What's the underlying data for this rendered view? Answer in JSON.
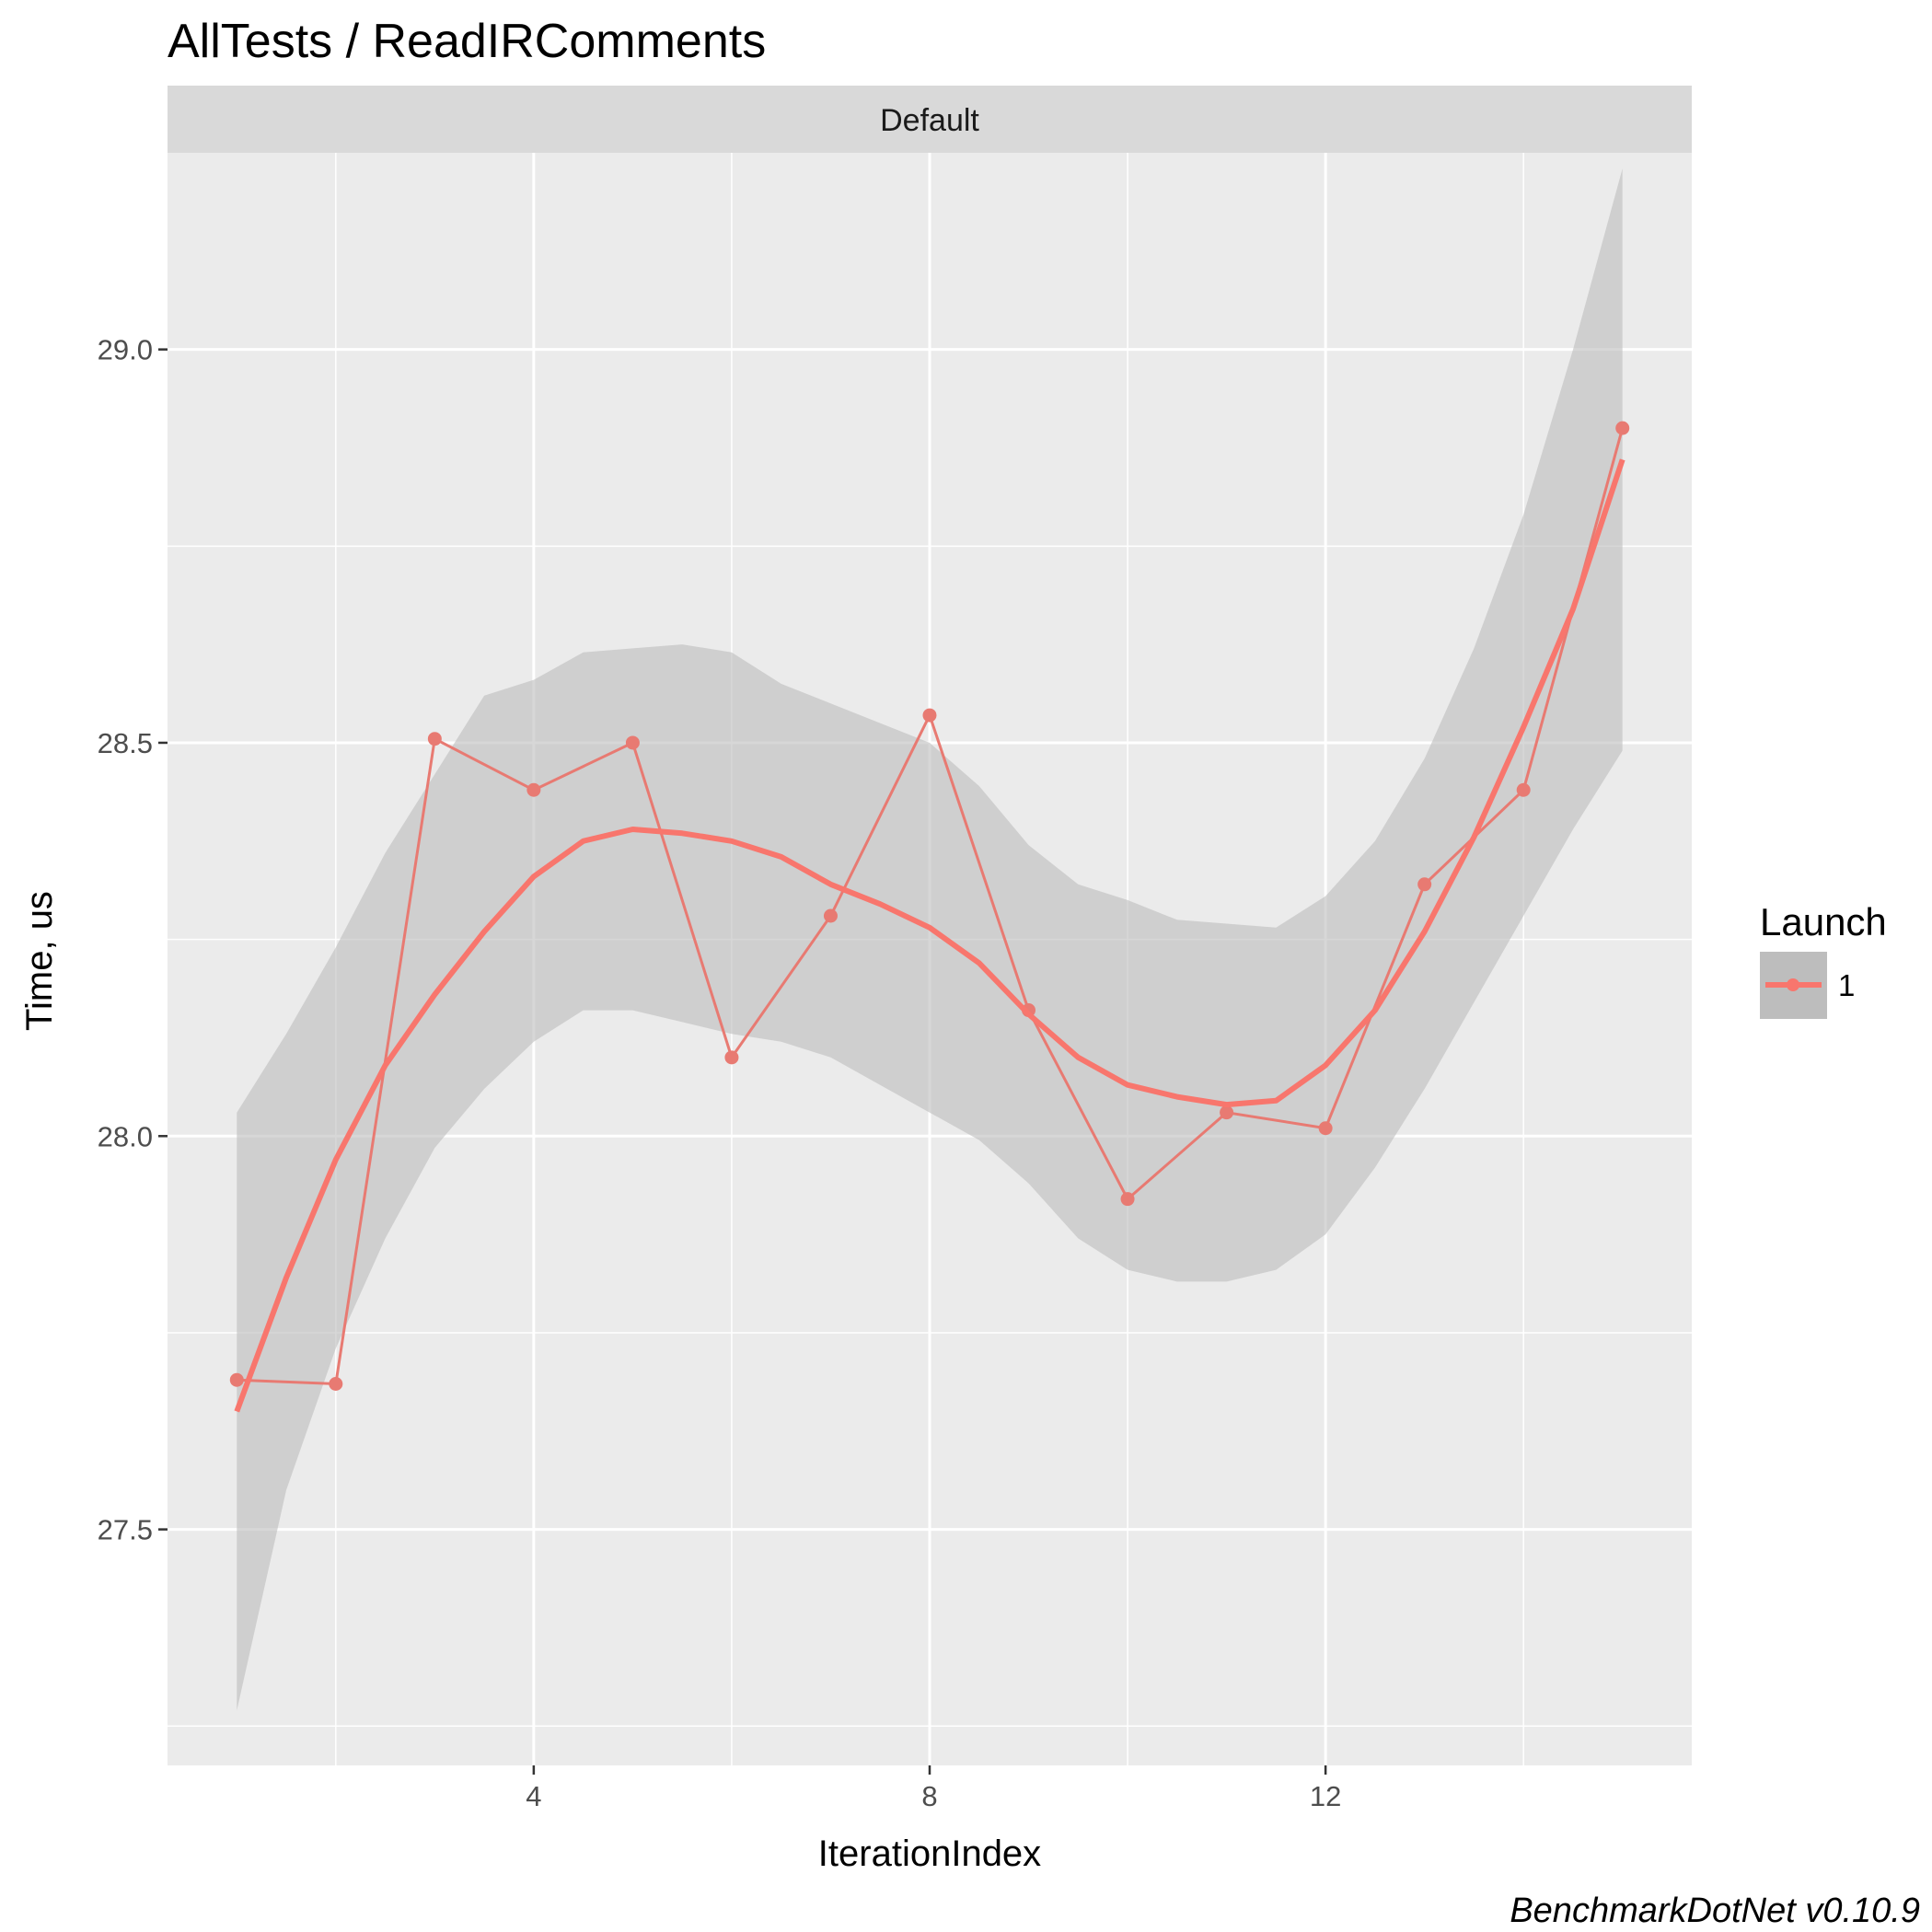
{
  "chart_data": {
    "type": "line",
    "title": "AllTests / ReadIRComments",
    "facet": "Default",
    "xlabel": "IterationIndex",
    "ylabel": "Time, us",
    "xlim": [
      0.3,
      15.7
    ],
    "ylim": [
      27.2,
      29.25
    ],
    "x_ticks": [
      4,
      8,
      12
    ],
    "x_tick_labels": [
      "4",
      "8",
      "12"
    ],
    "y_ticks": [
      27.5,
      28.0,
      28.5,
      29.0
    ],
    "y_tick_labels": [
      "27.5",
      "28.0",
      "28.5",
      "29.0"
    ],
    "grid": true,
    "legend": {
      "title": "Launch",
      "position": "right",
      "entries": [
        "1"
      ]
    },
    "colors": {
      "series": "#F8766D",
      "points": "#E87A72",
      "ribbon": "#BDBDBD",
      "panel": "#EBEBEB",
      "strip": "#D9D9D9",
      "grid": "#FFFFFF"
    },
    "series": [
      {
        "name": "1",
        "x": [
          1,
          2,
          3,
          4,
          5,
          6,
          7,
          8,
          9,
          10,
          11,
          12,
          13,
          14,
          15
        ],
        "values": [
          27.69,
          27.685,
          28.505,
          28.44,
          28.5,
          28.1,
          28.28,
          28.535,
          28.16,
          27.92,
          28.03,
          28.01,
          28.32,
          28.44,
          28.9
        ]
      }
    ],
    "smooth": {
      "x": [
        1,
        1.5,
        2,
        2.5,
        3,
        3.5,
        4,
        4.5,
        5,
        5.5,
        6,
        6.5,
        7,
        7.5,
        8,
        8.5,
        9,
        9.5,
        10,
        10.5,
        11,
        11.5,
        12,
        12.5,
        13,
        13.5,
        14,
        14.5,
        15
      ],
      "y": [
        27.65,
        27.82,
        27.97,
        28.09,
        28.18,
        28.26,
        28.33,
        28.375,
        28.39,
        28.385,
        28.375,
        28.355,
        28.32,
        28.295,
        28.265,
        28.22,
        28.155,
        28.1,
        28.065,
        28.05,
        28.04,
        28.045,
        28.09,
        28.16,
        28.26,
        28.38,
        28.52,
        28.67,
        28.86
      ],
      "lower": [
        27.27,
        27.55,
        27.73,
        27.87,
        27.985,
        28.06,
        28.12,
        28.16,
        28.16,
        28.145,
        28.13,
        28.12,
        28.1,
        28.065,
        28.03,
        27.995,
        27.94,
        27.87,
        27.83,
        27.815,
        27.815,
        27.83,
        27.875,
        27.96,
        28.06,
        28.17,
        28.28,
        28.39,
        28.49
      ],
      "upper": [
        28.03,
        28.13,
        28.24,
        28.36,
        28.46,
        28.56,
        28.58,
        28.615,
        28.62,
        28.625,
        28.615,
        28.575,
        28.55,
        28.525,
        28.5,
        28.445,
        28.37,
        28.32,
        28.3,
        28.275,
        28.27,
        28.265,
        28.305,
        28.375,
        28.48,
        28.62,
        28.79,
        29.0,
        29.23
      ]
    },
    "caption": "BenchmarkDotNet v0.10.9"
  }
}
